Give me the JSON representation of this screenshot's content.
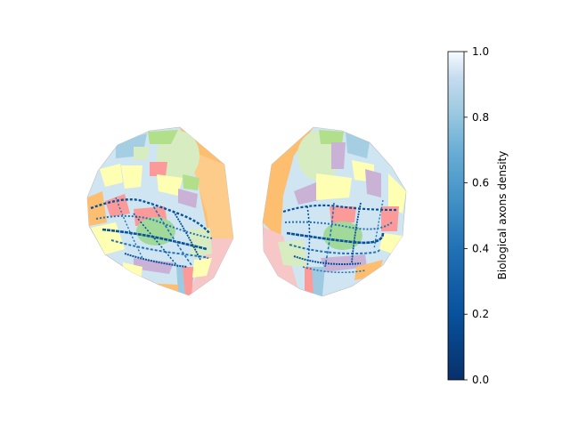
{
  "chart_data": {
    "type": "heatmap",
    "title": "",
    "panels": [
      "left hemisphere flatmap",
      "right hemisphere flatmap"
    ],
    "colorbar": {
      "label": "Biological axons density",
      "colormap": "Blues_r",
      "range": [
        0.0,
        1.0
      ],
      "ticks": [
        0.0,
        0.2,
        0.4,
        0.6,
        0.8,
        1.0
      ],
      "tick_labels": [
        "0.0",
        "0.2",
        "0.4",
        "0.6",
        "0.8",
        "1.0"
      ],
      "location": "right"
    },
    "axes_visible": false,
    "region_palette": [
      "#fdbf6f",
      "#b2df8a",
      "#a6cee3",
      "#fb9a99",
      "#cab2d6",
      "#ffffb3",
      "#c7e9c0",
      "#f7c6c7",
      "#1f78b4"
    ]
  }
}
